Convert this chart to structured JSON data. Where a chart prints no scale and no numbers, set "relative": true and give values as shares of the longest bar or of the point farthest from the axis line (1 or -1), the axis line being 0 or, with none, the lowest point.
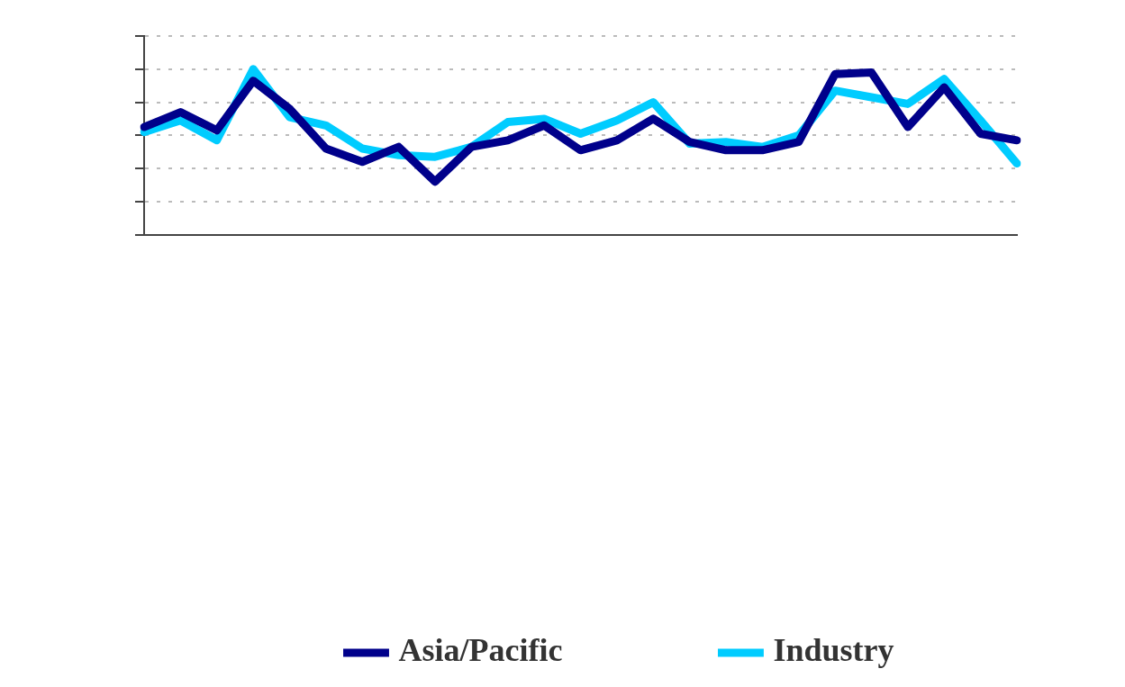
{
  "chart_data": {
    "type": "line",
    "relative": true,
    "categories": [
      null,
      null,
      null,
      null,
      null,
      null,
      null,
      null,
      null,
      null,
      null,
      null,
      null,
      null,
      null,
      null,
      null,
      null,
      null,
      null,
      null,
      null,
      null,
      null,
      null
    ],
    "series": [
      {
        "name": "Asia/Pacific",
        "color": "#00008b",
        "values": [
          0.65,
          0.74,
          0.63,
          0.93,
          0.76,
          0.52,
          0.44,
          0.53,
          0.32,
          0.53,
          0.57,
          0.66,
          0.51,
          0.57,
          0.7,
          0.56,
          0.51,
          0.51,
          0.56,
          0.97,
          0.98,
          0.65,
          0.89,
          0.61,
          0.57
        ]
      },
      {
        "name": "Industry",
        "color": "#00ccff",
        "values": [
          0.62,
          0.69,
          0.57,
          1,
          0.71,
          0.66,
          0.52,
          0.48,
          0.47,
          0.53,
          0.68,
          0.7,
          0.61,
          0.69,
          0.8,
          0.55,
          0.56,
          0.53,
          0.6,
          0.87,
          0.83,
          0.79,
          0.94,
          0.69,
          0.43
        ]
      }
    ],
    "grid": "y",
    "legend": "bottom",
    "marker": "none",
    "line_style": "solid"
  }
}
